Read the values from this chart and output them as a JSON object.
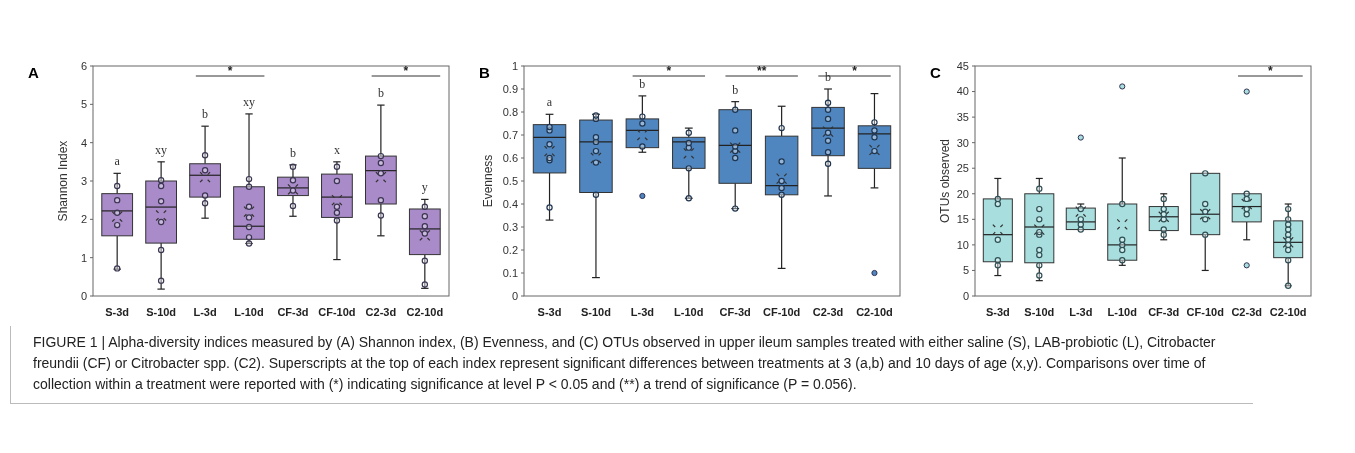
{
  "chart_data": [
    {
      "type": "box",
      "title": "A",
      "ylabel": "Shannon Index",
      "categories": [
        "S-3d",
        "S-10d",
        "L-3d",
        "L-10d",
        "CF-3d",
        "CF-10d",
        "C2-3d",
        "C2-10d"
      ],
      "ylim": [
        0,
        6
      ],
      "yticks": [
        0,
        1,
        2,
        3,
        4,
        5,
        6
      ],
      "marker": "circle",
      "series": [
        {
          "color": "#a98bc9",
          "value_labels": [
            "a",
            "xy",
            "b",
            "xy",
            "b",
            "x",
            "b",
            "y"
          ],
          "boxes": [
            {
              "low": 0.7,
              "q1": 1.57,
              "median": 2.22,
              "q3": 2.67,
              "high": 3.2,
              "mean": 2.07
            },
            {
              "low": 0.18,
              "q1": 1.38,
              "median": 2.32,
              "q3": 3.0,
              "high": 3.5,
              "mean": 2.1
            },
            {
              "low": 2.03,
              "q1": 2.58,
              "median": 3.15,
              "q3": 3.45,
              "high": 4.43,
              "mean": 3.1
            },
            {
              "low": 1.37,
              "q1": 1.48,
              "median": 1.82,
              "q3": 2.85,
              "high": 4.75,
              "mean": 2.2
            },
            {
              "low": 2.08,
              "q1": 2.62,
              "median": 2.82,
              "q3": 3.1,
              "high": 3.42,
              "mean": 2.78
            },
            {
              "low": 0.95,
              "q1": 2.05,
              "median": 2.58,
              "q3": 3.18,
              "high": 3.5,
              "mean": 2.5
            },
            {
              "low": 1.57,
              "q1": 2.4,
              "median": 3.27,
              "q3": 3.65,
              "high": 4.98,
              "mean": 3.1
            },
            {
              "low": 0.2,
              "q1": 1.08,
              "median": 1.75,
              "q3": 2.27,
              "high": 2.52,
              "mean": 1.58
            }
          ]
        },
        {
          "type": "scatter",
          "color": "#3a3550",
          "x": [
            "S-3d",
            "S-3d",
            "S-3d",
            "S-3d",
            "S-3d",
            "S-10d",
            "S-10d",
            "S-10d",
            "S-10d",
            "S-10d",
            "S-10d",
            "S-10d",
            "L-3d",
            "L-3d",
            "L-3d",
            "L-3d",
            "L-3d",
            "L-10d",
            "L-10d",
            "L-10d",
            "L-10d",
            "L-10d",
            "L-10d",
            "L-10d",
            "CF-3d",
            "CF-3d",
            "CF-3d",
            "CF-3d",
            "CF-10d",
            "CF-10d",
            "CF-10d",
            "CF-10d",
            "CF-10d",
            "C2-3d",
            "C2-3d",
            "C2-3d",
            "C2-3d",
            "C2-3d",
            "C2-10d",
            "C2-10d",
            "C2-10d",
            "C2-10d",
            "C2-10d",
            "C2-10d"
          ],
          "values": [
            0.72,
            1.85,
            2.17,
            2.5,
            2.87,
            0.4,
            1.2,
            1.93,
            null,
            2.47,
            2.87,
            3.02,
            2.42,
            2.62,
            null,
            3.28,
            3.67,
            1.37,
            1.53,
            1.8,
            2.05,
            2.33,
            2.85,
            3.05,
            2.35,
            2.75,
            3.02,
            3.37,
            1.97,
            2.17,
            2.33,
            3.0,
            3.37,
            2.1,
            2.5,
            3.2,
            3.47,
            3.65,
            0.3,
            0.92,
            1.63,
            1.82,
            2.08,
            2.33
          ]
        }
      ],
      "annotations": [
        "*",
        "*"
      ]
    },
    {
      "type": "box",
      "title": "B",
      "ylabel": "Evenness",
      "categories": [
        "S-3d",
        "S-10d",
        "L-3d",
        "L-10d",
        "CF-3d",
        "CF-10d",
        "C2-3d",
        "C2-10d"
      ],
      "ylim": [
        0,
        1
      ],
      "yticks": [
        0,
        0.1,
        0.2,
        0.3,
        0.4,
        0.5,
        0.6,
        0.7,
        0.8,
        0.9,
        1
      ],
      "marker": "circle",
      "series": [
        {
          "color": "#4f86c0",
          "value_labels": [
            "a",
            null,
            "b",
            null,
            "b",
            null,
            "b",
            null
          ],
          "boxes": [
            {
              "low": 0.33,
              "q1": 0.535,
              "median": 0.69,
              "q3": 0.745,
              "high": 0.79,
              "mean": 0.63
            },
            {
              "low": 0.08,
              "q1": 0.45,
              "median": 0.67,
              "q3": 0.765,
              "high": 0.79,
              "mean": 0.6
            },
            {
              "low": 0.625,
              "q1": 0.645,
              "median": 0.72,
              "q3": 0.77,
              "high": 0.87,
              "mean": 0.7,
              "outliers": [
                0.435
              ]
            },
            {
              "low": 0.425,
              "q1": 0.555,
              "median": 0.67,
              "q3": 0.69,
              "high": 0.73,
              "mean": 0.62
            },
            {
              "low": 0.38,
              "q1": 0.49,
              "median": 0.655,
              "q3": 0.81,
              "high": 0.845,
              "mean": 0.645
            },
            {
              "low": 0.12,
              "q1": 0.44,
              "median": 0.48,
              "q3": 0.695,
              "high": 0.825,
              "mean": 0.51
            },
            {
              "low": 0.435,
              "q1": 0.61,
              "median": 0.73,
              "q3": 0.82,
              "high": 0.9,
              "mean": 0.715
            },
            {
              "low": 0.47,
              "q1": 0.555,
              "median": 0.705,
              "q3": 0.74,
              "high": 0.88,
              "mean": 0.635,
              "outliers": [
                0.1
              ]
            }
          ]
        },
        {
          "type": "scatter",
          "color": "#1f3550",
          "x": [
            "S-3d",
            "S-3d",
            "S-3d",
            "S-3d",
            "S-3d",
            "S-3d",
            "S-10d",
            "S-10d",
            "S-10d",
            "S-10d",
            "S-10d",
            "S-10d",
            "S-10d",
            "L-3d",
            "L-3d",
            "L-3d",
            "L-3d",
            "L-10d",
            "L-10d",
            "L-10d",
            "L-10d",
            "L-10d",
            "CF-3d",
            "CF-3d",
            "CF-3d",
            "CF-3d",
            "CF-3d",
            "CF-3d",
            "CF-10d",
            "CF-10d",
            "CF-10d",
            "CF-10d",
            "CF-10d",
            "C2-3d",
            "C2-3d",
            "C2-3d",
            "C2-3d",
            "C2-3d",
            "C2-3d",
            "C2-3d",
            "C2-10d",
            "C2-10d",
            "C2-10d",
            "C2-10d"
          ],
          "values": [
            0.385,
            0.59,
            0.6,
            0.66,
            0.72,
            0.735,
            0.44,
            0.58,
            0.63,
            0.67,
            0.69,
            0.77,
            0.785,
            0.65,
            null,
            0.75,
            0.78,
            0.425,
            0.555,
            0.645,
            0.665,
            0.71,
            0.38,
            0.6,
            0.63,
            0.65,
            0.72,
            0.81,
            0.44,
            0.47,
            0.5,
            0.585,
            0.73,
            0.575,
            0.625,
            0.675,
            0.71,
            0.77,
            0.81,
            0.84,
            0.63,
            0.69,
            0.72,
            0.755
          ]
        }
      ],
      "annotations": [
        "*",
        "**",
        "*"
      ]
    },
    {
      "type": "box",
      "title": "C",
      "ylabel": "OTUs observed",
      "categories": [
        "S-3d",
        "S-10d",
        "L-3d",
        "L-10d",
        "CF-3d",
        "CF-10d",
        "C2-3d",
        "C2-10d"
      ],
      "ylim": [
        0,
        45
      ],
      "yticks": [
        0,
        5,
        10,
        15,
        20,
        25,
        30,
        35,
        40,
        45
      ],
      "marker": "circle",
      "series": [
        {
          "color": "#a8dfde",
          "boxes": [
            {
              "low": 4,
              "q1": 6.7,
              "median": 12,
              "q3": 19,
              "high": 23,
              "mean": 13
            },
            {
              "low": 3,
              "q1": 6.5,
              "median": 13.5,
              "q3": 20,
              "high": 23,
              "mean": 13
            },
            {
              "low": 13,
              "q1": 13,
              "median": 14.5,
              "q3": 17.2,
              "high": 18,
              "mean": 16.5,
              "outliers": [
                31
              ]
            },
            {
              "low": 6,
              "q1": 7,
              "median": 10,
              "q3": 18,
              "high": 27,
              "mean": 14,
              "outliers": [
                41
              ]
            },
            {
              "low": 11,
              "q1": 12.8,
              "median": 15.5,
              "q3": 17.5,
              "high": 20,
              "mean": 15.5
            },
            {
              "low": 5,
              "q1": 12,
              "median": 16,
              "q3": 24,
              "high": 24,
              "mean": 16
            },
            {
              "low": 11,
              "q1": 14.5,
              "median": 17.5,
              "q3": 20,
              "high": 20,
              "mean": 18,
              "outliers": [
                6,
                40
              ]
            },
            {
              "low": 2,
              "q1": 7.5,
              "median": 10.5,
              "q3": 14.7,
              "high": 18,
              "mean": 10.5
            }
          ]
        },
        {
          "type": "scatter",
          "color": "#2f4f55",
          "x": [
            "S-3d",
            "S-3d",
            "S-3d",
            "S-3d",
            "S-3d",
            "S-10d",
            "S-10d",
            "S-10d",
            "S-10d",
            "S-10d",
            "S-10d",
            "S-10d",
            "S-10d",
            "S-10d",
            "L-3d",
            "L-3d",
            "L-3d",
            "L-3d",
            "L-3d",
            "L-10d",
            "L-10d",
            "L-10d",
            "L-10d",
            "L-10d",
            "L-10d",
            "CF-3d",
            "CF-3d",
            "CF-3d",
            "CF-3d",
            "CF-3d",
            "CF-3d",
            "CF-10d",
            "CF-10d",
            "CF-10d",
            "CF-10d",
            "CF-10d",
            "C2-3d",
            "C2-3d",
            "C2-3d",
            "C2-3d",
            "C2-3d",
            "C2-10d",
            "C2-10d",
            "C2-10d",
            "C2-10d",
            "C2-10d",
            "C2-10d",
            "C2-10d",
            "C2-10d",
            "C2-10d",
            "C2-10d"
          ],
          "values": [
            6,
            7,
            11,
            18,
            19,
            4,
            6,
            8,
            9,
            12,
            12.5,
            15,
            17,
            21,
            13,
            14,
            15,
            null,
            17,
            7,
            9,
            10,
            11,
            null,
            18,
            12,
            13,
            15,
            16,
            17,
            19,
            12,
            15,
            16.5,
            18,
            24,
            16,
            17,
            null,
            19,
            20,
            2,
            7,
            9,
            10,
            11,
            12,
            13,
            14,
            15,
            17
          ]
        }
      ],
      "annotations": [
        "*",
        "FIGURE 1 | Alpha-diversity indices measured by (A) Shannon index, (B) Evenness, and (C) OTUs observed in upper ileum samples treated with either saline (S), LAB-probiotic (L), Citrobacter freundii (CF) or Citrobacter spp. (C2). Superscripts at the top of each index represent significant differences between treatments at 3 (a,b) and 10 days of age (x,y). Comparisons over time of collection within a treatment were reported with (*) indicating significance at level P < 0.05 and (**) a trend of significance (P = 0.056)."
      ]
    }
  ]
}
